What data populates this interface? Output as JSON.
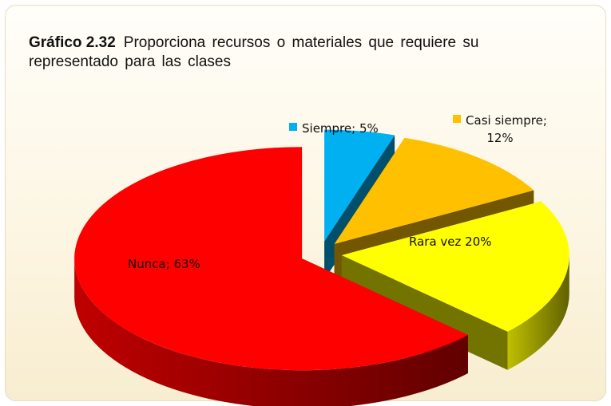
{
  "chart_data": {
    "type": "pie",
    "title": "Gráfico 2.32",
    "subtitle": "Proporciona recursos o materiales que requiere su representado para las clases",
    "values": [
      5,
      12,
      20,
      63
    ],
    "value_labels": [
      "Siempre; 5%",
      "Casi siempre; 12%",
      "Rara vez 20%",
      "Nunca; 63%"
    ],
    "colors": [
      "#00b0f0",
      "#ffc000",
      "#ffff00",
      "#ff0000"
    ]
  }
}
